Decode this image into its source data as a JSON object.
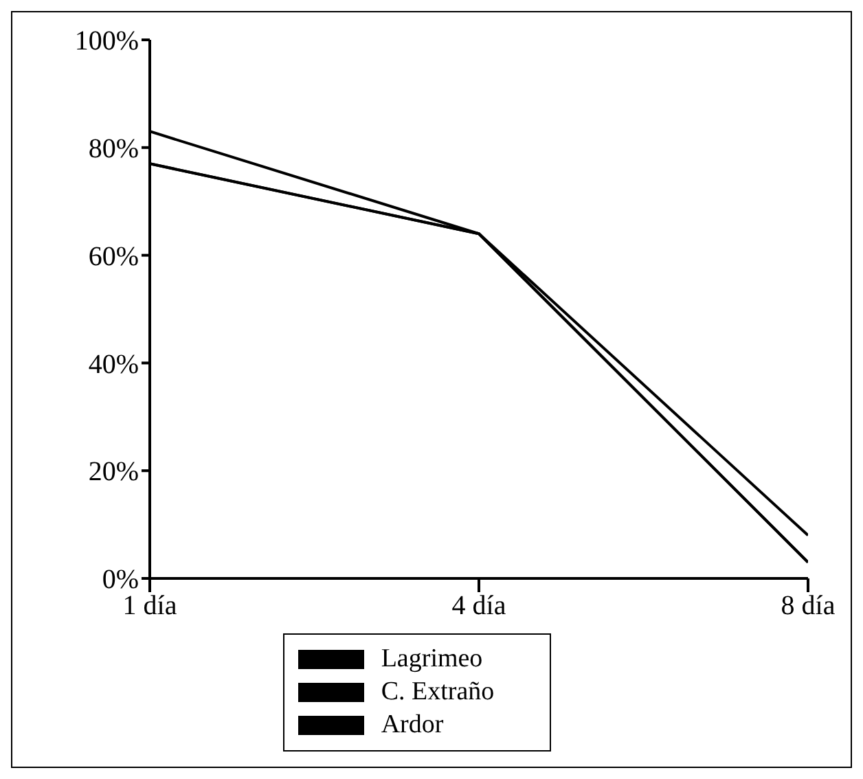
{
  "chart_data": {
    "type": "line",
    "categories": [
      "1 día",
      "4 día",
      "8 día"
    ],
    "series": [
      {
        "name": "Lagrimeo",
        "color": "#000000",
        "values": [
          83,
          64,
          3
        ]
      },
      {
        "name": "C. Extraño",
        "color": "#000000",
        "values": [
          77,
          64,
          8
        ]
      },
      {
        "name": "Ardor",
        "color": "#000000",
        "values": [
          77,
          64,
          3
        ]
      }
    ],
    "ylim": [
      0,
      100
    ],
    "yticks": [
      {
        "value": 0,
        "label": "0%"
      },
      {
        "value": 20,
        "label": "20%"
      },
      {
        "value": 40,
        "label": "40%"
      },
      {
        "value": 60,
        "label": "60%"
      },
      {
        "value": 80,
        "label": "80%"
      },
      {
        "value": 100,
        "label": "100%"
      }
    ],
    "grid": false,
    "legend": "bottom",
    "marker": "none",
    "line_style": "solid"
  }
}
